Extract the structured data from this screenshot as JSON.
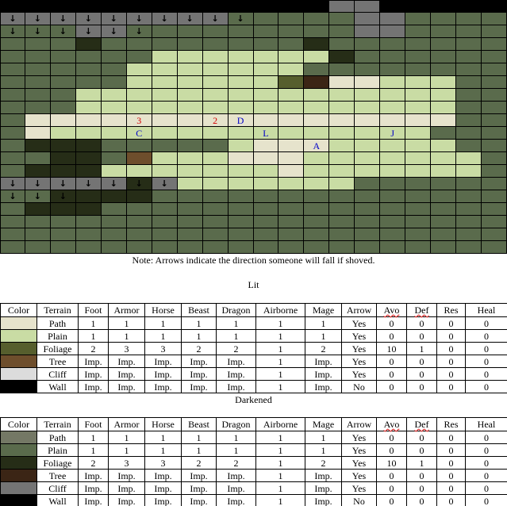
{
  "map": {
    "palette": {
      "W": "#000000",
      "p": "#e6e3cc",
      "l": "#c9dca4",
      "f": "#565e2d",
      "t": "#6e4e2c",
      "c": "#dcdcdc",
      "P": "#747865",
      "L": "#5a6b4c",
      "F": "#262d17",
      "T": "#3b2515",
      "C": "#747474"
    },
    "rows": [
      "WWWWWWWWWWWWWCCWWWWW",
      "CCCCCCCCCLLLLLCCLLLL",
      "LLLCCLLLLLLLLLCCLLLL",
      "LLLFLLLLLLLLFLLLLLLL",
      "LLLLLLlllllllFLLLLLL",
      "LLLLLlllllllLLLLLLLL",
      "LLLLLllllllfTpplllLL",
      "LLLlllllllllllllllLL",
      "LLLlllllllllllllllLL",
      "LpppppppppppppppppLL",
      "LplllllllllllllllLLL",
      "LFFFLLLLLlppplllllLL",
      "LLFFLtlllppplllllllL",
      "LFFFlllllllplllllllL",
      "CCCCCFClllllllLLLLLL",
      "LLFFFFLLLLLLLLLLLLLL",
      "LFFFLLLLLLLLLLLLLLLL",
      "LLLLLLLLLLLLLLLLLLLL",
      "LLLLLLLLLLLLLLLLLLLL",
      "LLLLLLLLLLLLLLLLLLLL"
    ],
    "markers": [
      {
        "r": 9,
        "c": 5,
        "text": "3",
        "color": "#d40000"
      },
      {
        "r": 9,
        "c": 8,
        "text": "2",
        "color": "#d40000"
      },
      {
        "r": 9,
        "c": 9,
        "text": "D",
        "color": "#0000c8"
      },
      {
        "r": 10,
        "c": 5,
        "text": "C",
        "color": "#0000c8"
      },
      {
        "r": 10,
        "c": 10,
        "text": "L",
        "color": "#0000c8"
      },
      {
        "r": 10,
        "c": 15,
        "text": "J",
        "color": "#0000c8"
      },
      {
        "r": 11,
        "c": 12,
        "text": "A",
        "color": "#0000c8"
      }
    ],
    "arrows": [
      {
        "r": 0,
        "c": 0
      },
      {
        "r": 0,
        "c": 1
      },
      {
        "r": 0,
        "c": 2
      },
      {
        "r": 0,
        "c": 3
      },
      {
        "r": 0,
        "c": 4
      },
      {
        "r": 0,
        "c": 5
      },
      {
        "r": 0,
        "c": 6
      },
      {
        "r": 0,
        "c": 7
      },
      {
        "r": 0,
        "c": 8
      },
      {
        "r": 0,
        "c": 17
      },
      {
        "r": 0,
        "c": 18
      },
      {
        "r": 1,
        "c": 0
      },
      {
        "r": 1,
        "c": 1
      },
      {
        "r": 1,
        "c": 2
      },
      {
        "r": 1,
        "c": 3
      },
      {
        "r": 1,
        "c": 4
      },
      {
        "r": 1,
        "c": 5
      },
      {
        "r": 1,
        "c": 6
      },
      {
        "r": 1,
        "c": 7
      },
      {
        "r": 1,
        "c": 8
      },
      {
        "r": 1,
        "c": 9
      },
      {
        "r": 2,
        "c": 0
      },
      {
        "r": 2,
        "c": 1
      },
      {
        "r": 2,
        "c": 2
      },
      {
        "r": 2,
        "c": 3
      },
      {
        "r": 2,
        "c": 4
      },
      {
        "r": 2,
        "c": 5
      },
      {
        "r": 14,
        "c": 0
      },
      {
        "r": 14,
        "c": 1
      },
      {
        "r": 14,
        "c": 2
      },
      {
        "r": 14,
        "c": 3
      },
      {
        "r": 14,
        "c": 4
      },
      {
        "r": 14,
        "c": 5
      },
      {
        "r": 14,
        "c": 6
      },
      {
        "r": 15,
        "c": 0
      },
      {
        "r": 15,
        "c": 1
      },
      {
        "r": 15,
        "c": 2
      }
    ],
    "arrow_glyph": "↓"
  },
  "note": "Note: Arrows indicate the direction someone will fall if shoved.",
  "tables": {
    "headers": [
      "Color",
      "Terrain",
      "Foot",
      "Armor",
      "Horse",
      "Beast",
      "Dragon",
      "Airborne",
      "Mage",
      "Arrow",
      "Avo",
      "Def",
      "Res",
      "Heal"
    ],
    "lit": {
      "title": "Lit",
      "rows": [
        {
          "color": "#e6e3cc",
          "cells": [
            "Path",
            "1",
            "1",
            "1",
            "1",
            "1",
            "1",
            "1",
            "Yes",
            "0",
            "0",
            "0",
            "0"
          ]
        },
        {
          "color": "#c9dca4",
          "cells": [
            "Plain",
            "1",
            "1",
            "1",
            "1",
            "1",
            "1",
            "1",
            "Yes",
            "0",
            "0",
            "0",
            "0"
          ]
        },
        {
          "color": "#565e2d",
          "cells": [
            "Foliage",
            "2",
            "3",
            "3",
            "2",
            "2",
            "1",
            "2",
            "Yes",
            "10",
            "1",
            "0",
            "0"
          ]
        },
        {
          "color": "#6e4e2c",
          "cells": [
            "Tree",
            "Imp.",
            "Imp.",
            "Imp.",
            "Imp.",
            "Imp.",
            "1",
            "Imp.",
            "Yes",
            "0",
            "0",
            "0",
            "0"
          ]
        },
        {
          "color": "#dcdcdc",
          "cells": [
            "Cliff",
            "Imp.",
            "Imp.",
            "Imp.",
            "Imp.",
            "Imp.",
            "1",
            "Imp.",
            "Yes",
            "0",
            "0",
            "0",
            "0"
          ]
        },
        {
          "color": "#000000",
          "cells": [
            "Wall",
            "Imp.",
            "Imp.",
            "Imp.",
            "Imp.",
            "Imp.",
            "1",
            "Imp.",
            "No",
            "0",
            "0",
            "0",
            "0"
          ]
        }
      ]
    },
    "dark": {
      "title": "Darkened",
      "rows": [
        {
          "color": "#747865",
          "cells": [
            "Path",
            "1",
            "1",
            "1",
            "1",
            "1",
            "1",
            "1",
            "Yes",
            "0",
            "0",
            "0",
            "0"
          ]
        },
        {
          "color": "#5a6b4c",
          "cells": [
            "Plain",
            "1",
            "1",
            "1",
            "1",
            "1",
            "1",
            "1",
            "Yes",
            "0",
            "0",
            "0",
            "0"
          ]
        },
        {
          "color": "#262d17",
          "cells": [
            "Foliage",
            "2",
            "3",
            "3",
            "2",
            "2",
            "1",
            "2",
            "Yes",
            "10",
            "1",
            "0",
            "0"
          ]
        },
        {
          "color": "#3b2515",
          "cells": [
            "Tree",
            "Imp.",
            "Imp.",
            "Imp.",
            "Imp.",
            "Imp.",
            "1",
            "Imp.",
            "Yes",
            "0",
            "0",
            "0",
            "0"
          ]
        },
        {
          "color": "#747474",
          "cells": [
            "Cliff",
            "Imp.",
            "Imp.",
            "Imp.",
            "Imp.",
            "Imp.",
            "1",
            "Imp.",
            "Yes",
            "0",
            "0",
            "0",
            "0"
          ]
        },
        {
          "color": "#000000",
          "cells": [
            "Wall",
            "Imp.",
            "Imp.",
            "Imp.",
            "Imp.",
            "Imp.",
            "1",
            "Imp.",
            "No",
            "0",
            "0",
            "0",
            "0"
          ]
        }
      ]
    }
  }
}
